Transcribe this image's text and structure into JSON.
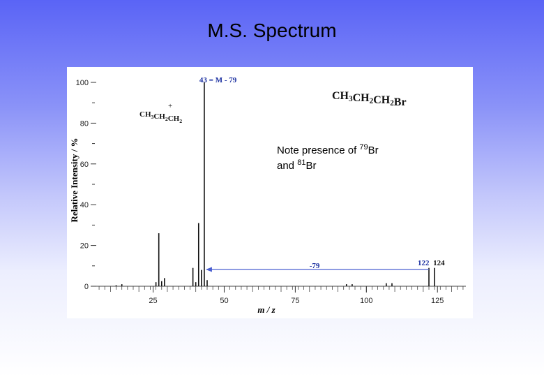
{
  "slide": {
    "title": "M.S. Spectrum"
  },
  "chart_data": {
    "type": "bar",
    "xlabel": "m / z",
    "ylabel": "Relative Intensity / %",
    "xlim": [
      5,
      135
    ],
    "ylim": [
      0,
      100
    ],
    "xticks": [
      25,
      50,
      75,
      100,
      125
    ],
    "yticks": [
      0,
      20,
      40,
      60,
      80,
      100
    ],
    "peaks": [
      {
        "x": 12,
        "y": 0.5
      },
      {
        "x": 14,
        "y": 1
      },
      {
        "x": 26,
        "y": 2
      },
      {
        "x": 27,
        "y": 26
      },
      {
        "x": 28,
        "y": 2.5
      },
      {
        "x": 29,
        "y": 4
      },
      {
        "x": 39,
        "y": 9
      },
      {
        "x": 40,
        "y": 2
      },
      {
        "x": 41,
        "y": 31
      },
      {
        "x": 42,
        "y": 8
      },
      {
        "x": 43,
        "y": 100
      },
      {
        "x": 44,
        "y": 3
      },
      {
        "x": 93,
        "y": 1
      },
      {
        "x": 95,
        "y": 1
      },
      {
        "x": 107,
        "y": 1.5
      },
      {
        "x": 109,
        "y": 1.5
      },
      {
        "x": 122,
        "y": 9
      },
      {
        "x": 124,
        "y": 9
      }
    ],
    "compound": {
      "main": "CH",
      "parts": [
        {
          "t": "CH"
        },
        {
          "s": "3"
        },
        {
          "t": "CH"
        },
        {
          "s": "2"
        },
        {
          "t": "CH"
        },
        {
          "s": "2"
        },
        {
          "t": "Br"
        }
      ]
    },
    "annotations": {
      "base_peak": "43 = M - 79",
      "fragment": {
        "parts": [
          {
            "t": "CH"
          },
          {
            "s": "3"
          },
          {
            "t": "CH"
          },
          {
            "s": "2"
          },
          {
            "t": "CH"
          },
          {
            "s": "2"
          }
        ],
        "charge": "+"
      },
      "loss": "-79",
      "m122": "122",
      "m124": "124",
      "note_line1_a": "Note presence of ",
      "note_line1_sup": "79",
      "note_line1_b": "Br",
      "note_line2_a": "and ",
      "note_line2_sup": "81",
      "note_line2_b": "Br"
    },
    "colors": {
      "bars": "#111111",
      "arrow": "#4a5fd0",
      "annotation": "#1a2fa0"
    }
  }
}
